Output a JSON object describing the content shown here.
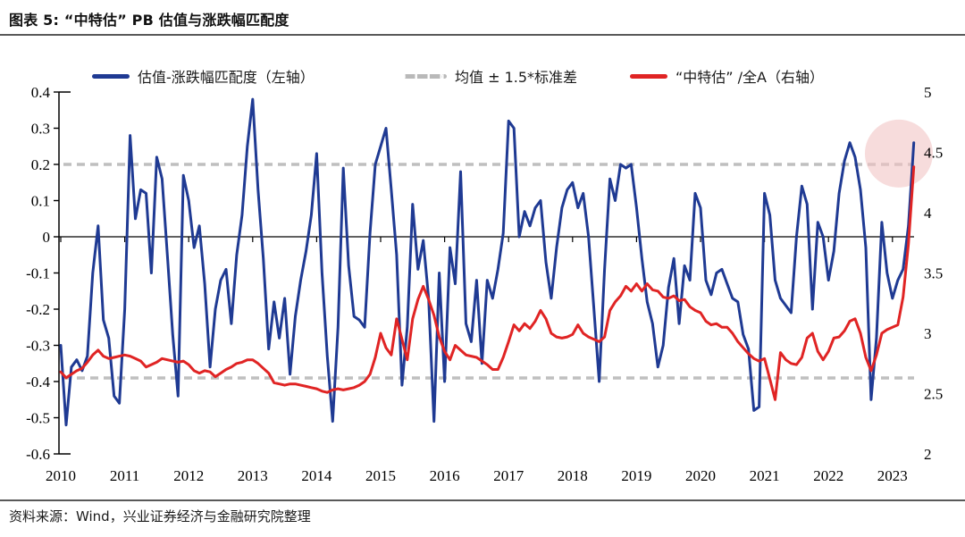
{
  "header": {
    "title": "图表 5: “中特估” PB 估值与涨跌幅匹配度"
  },
  "legend": [
    {
      "label": "估值-涨跌幅匹配度（左轴）",
      "type": "line",
      "color": "#1f3a93"
    },
    {
      "label": "均值 ± 1.5*标准差",
      "type": "dashed",
      "color": "#b9b9b9"
    },
    {
      "label": "“中特估” /全A（右轴）",
      "type": "line",
      "color": "#e02424"
    }
  ],
  "footer": {
    "source": "资料来源：Wind，兴业证券经济与金融研究院整理"
  },
  "chart_data": {
    "type": "line",
    "title": "“中特估” PB 估值与涨跌幅匹配度",
    "x_mode": "monthly",
    "x_start_year": 2010,
    "x_tick_labels": [
      "2010",
      "2011",
      "2012",
      "2013",
      "2014",
      "2015",
      "2016",
      "2017",
      "2018",
      "2019",
      "2020",
      "2021",
      "2022",
      "2023"
    ],
    "left_axis": {
      "range": [
        -0.6,
        0.4
      ],
      "tick_labels": [
        "0.4",
        "0.3",
        "0.2",
        "0.1",
        "0",
        "-0.1",
        "-0.2",
        "-0.3",
        "-0.4",
        "-0.5",
        "-0.6"
      ]
    },
    "right_axis": {
      "range": [
        2,
        5
      ],
      "tick_labels": [
        "5",
        "4.5",
        "4",
        "3.5",
        "3",
        "2.5",
        "2"
      ]
    },
    "bands": {
      "upper": 0.2,
      "lower": -0.39,
      "color": "#bfbfbf",
      "label": "均值 ± 1.5*标准差"
    },
    "highlight": {
      "shape": "circle",
      "color": "#f2c4c4",
      "opacity": 0.6,
      "year": 2023.1,
      "value_left": 0.23
    },
    "series": [
      {
        "name": "估值-涨跌幅匹配度（左轴）",
        "axis": "left",
        "color": "#1f3a93",
        "width": 3,
        "values": [
          -0.3,
          -0.52,
          -0.36,
          -0.34,
          -0.37,
          -0.33,
          -0.1,
          0.03,
          -0.23,
          -0.28,
          -0.44,
          -0.46,
          -0.2,
          0.28,
          0.05,
          0.13,
          0.12,
          -0.1,
          0.22,
          0.16,
          -0.05,
          -0.27,
          -0.44,
          0.17,
          0.1,
          -0.03,
          0.03,
          -0.13,
          -0.36,
          -0.2,
          -0.12,
          -0.09,
          -0.24,
          -0.05,
          0.06,
          0.25,
          0.38,
          0.13,
          -0.06,
          -0.31,
          -0.18,
          -0.28,
          -0.17,
          -0.38,
          -0.22,
          -0.12,
          -0.04,
          0.06,
          0.23,
          -0.1,
          -0.33,
          -0.51,
          -0.25,
          0.19,
          -0.08,
          -0.22,
          -0.23,
          -0.25,
          0.01,
          0.2,
          0.25,
          0.3,
          0.13,
          -0.05,
          -0.41,
          -0.25,
          0.09,
          -0.09,
          -0.01,
          -0.17,
          -0.51,
          -0.1,
          -0.4,
          -0.03,
          -0.13,
          0.18,
          -0.24,
          -0.29,
          -0.12,
          -0.35,
          -0.12,
          -0.17,
          -0.09,
          0.01,
          0.32,
          0.3,
          0.0,
          0.07,
          0.03,
          0.08,
          0.1,
          -0.07,
          -0.17,
          -0.03,
          0.08,
          0.13,
          0.15,
          0.08,
          0.12,
          0.0,
          -0.2,
          -0.4,
          -0.09,
          0.16,
          0.1,
          0.2,
          0.19,
          0.2,
          0.08,
          -0.06,
          -0.18,
          -0.24,
          -0.36,
          -0.3,
          -0.14,
          -0.06,
          -0.24,
          -0.08,
          -0.12,
          0.12,
          0.08,
          -0.12,
          -0.16,
          -0.1,
          -0.09,
          -0.13,
          -0.17,
          -0.18,
          -0.27,
          -0.31,
          -0.48,
          -0.47,
          0.12,
          0.06,
          -0.12,
          -0.17,
          -0.19,
          -0.21,
          0.0,
          0.14,
          0.09,
          -0.2,
          0.04,
          0.0,
          -0.12,
          -0.04,
          0.12,
          0.21,
          0.26,
          0.22,
          0.13,
          -0.03,
          -0.45,
          -0.28,
          0.04,
          -0.1,
          -0.17,
          -0.12,
          -0.09,
          0.03,
          0.26
        ]
      },
      {
        "name": "“中特估”/全A（右轴）",
        "axis": "right",
        "color": "#e02424",
        "width": 3,
        "values": [
          2.68,
          2.63,
          2.66,
          2.69,
          2.71,
          2.76,
          2.82,
          2.86,
          2.81,
          2.79,
          2.8,
          2.81,
          2.82,
          2.81,
          2.79,
          2.77,
          2.72,
          2.74,
          2.76,
          2.79,
          2.78,
          2.77,
          2.76,
          2.77,
          2.74,
          2.69,
          2.67,
          2.69,
          2.68,
          2.64,
          2.67,
          2.7,
          2.72,
          2.75,
          2.76,
          2.78,
          2.78,
          2.75,
          2.71,
          2.67,
          2.59,
          2.58,
          2.57,
          2.58,
          2.58,
          2.57,
          2.56,
          2.55,
          2.54,
          2.52,
          2.51,
          2.53,
          2.54,
          2.53,
          2.54,
          2.55,
          2.57,
          2.6,
          2.66,
          2.8,
          3.0,
          2.88,
          2.82,
          3.12,
          2.95,
          2.78,
          3.12,
          3.28,
          3.39,
          3.28,
          3.15,
          2.97,
          2.85,
          2.78,
          2.9,
          2.86,
          2.82,
          2.81,
          2.8,
          2.77,
          2.74,
          2.7,
          2.7,
          2.8,
          2.93,
          3.07,
          3.02,
          3.08,
          3.04,
          3.1,
          3.19,
          3.12,
          3.0,
          2.97,
          2.96,
          2.97,
          2.99,
          3.07,
          3.0,
          2.97,
          2.95,
          2.93,
          2.97,
          3.19,
          3.26,
          3.31,
          3.39,
          3.35,
          3.41,
          3.35,
          3.41,
          3.36,
          3.35,
          3.3,
          3.29,
          3.31,
          3.27,
          3.28,
          3.22,
          3.19,
          3.17,
          3.1,
          3.07,
          3.08,
          3.05,
          3.05,
          3.0,
          2.93,
          2.88,
          2.83,
          2.79,
          2.77,
          2.79,
          2.62,
          2.45,
          2.84,
          2.78,
          2.75,
          2.74,
          2.8,
          2.96,
          3.0,
          2.85,
          2.78,
          2.85,
          2.96,
          2.97,
          3.02,
          3.1,
          3.12,
          3.0,
          2.8,
          2.69,
          2.82,
          3.0,
          3.03,
          3.05,
          3.07,
          3.3,
          3.74,
          4.38
        ]
      }
    ]
  }
}
